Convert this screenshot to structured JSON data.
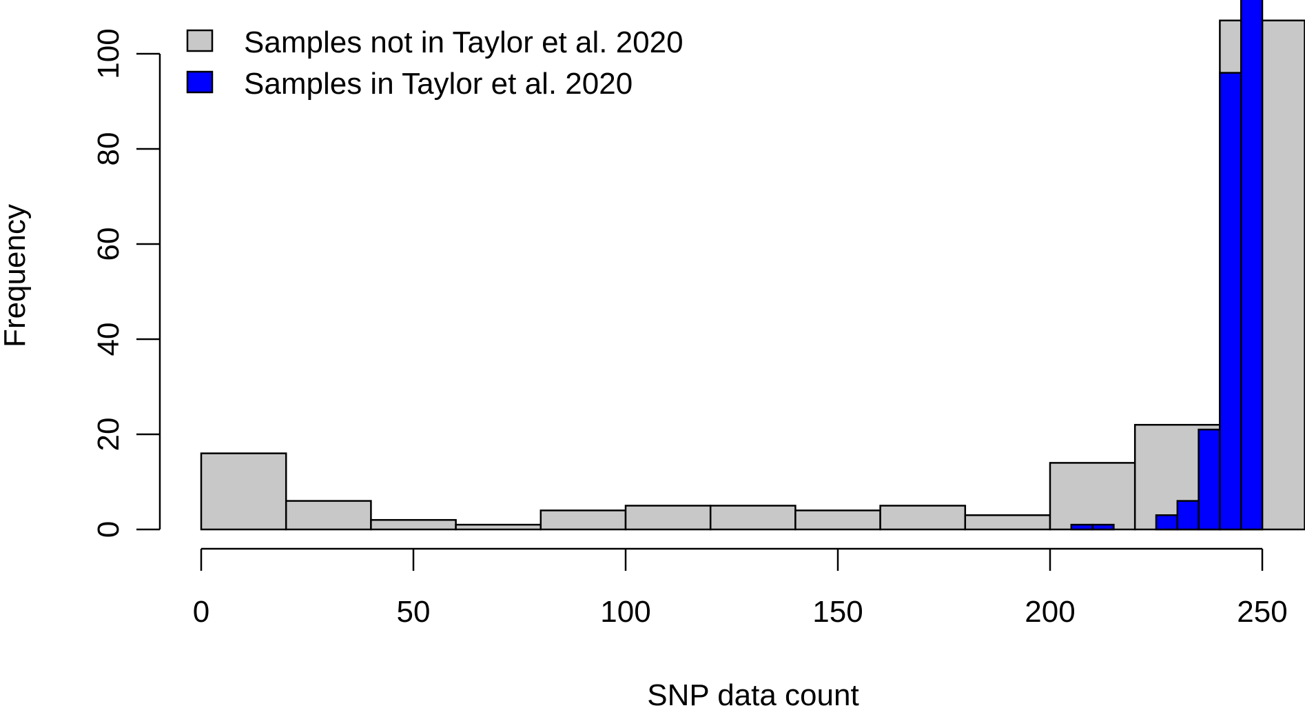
{
  "chart_data": {
    "type": "bar",
    "xlabel": "SNP data count",
    "ylabel": "Frequency",
    "xlim": [
      0,
      260
    ],
    "ylim": [
      0,
      106
    ],
    "x_ticks": [
      0,
      50,
      100,
      150,
      200,
      250
    ],
    "y_ticks": [
      0,
      20,
      40,
      60,
      80,
      100
    ],
    "legend": {
      "placement": "top-left"
    },
    "series": [
      {
        "name": "Samples not in Taylor et al. 2020",
        "color": "#c8c8c8",
        "bins": [
          {
            "x0": 0,
            "x1": 20,
            "count": 16
          },
          {
            "x0": 20,
            "x1": 40,
            "count": 6
          },
          {
            "x0": 40,
            "x1": 60,
            "count": 2
          },
          {
            "x0": 60,
            "x1": 80,
            "count": 1
          },
          {
            "x0": 80,
            "x1": 100,
            "count": 4
          },
          {
            "x0": 100,
            "x1": 120,
            "count": 5
          },
          {
            "x0": 120,
            "x1": 140,
            "count": 5
          },
          {
            "x0": 140,
            "x1": 160,
            "count": 4
          },
          {
            "x0": 160,
            "x1": 180,
            "count": 5
          },
          {
            "x0": 180,
            "x1": 200,
            "count": 3
          },
          {
            "x0": 200,
            "x1": 220,
            "count": 14
          },
          {
            "x0": 220,
            "x1": 240,
            "count": 22
          },
          {
            "x0": 240,
            "x1": 250,
            "count": 107
          },
          {
            "x0": 250,
            "x1": 260,
            "count": 107
          }
        ]
      },
      {
        "name": "Samples in Taylor et al. 2020",
        "color": "#0000ff",
        "bins": [
          {
            "x0": 205,
            "x1": 210,
            "count": 1
          },
          {
            "x0": 210,
            "x1": 215,
            "count": 1
          },
          {
            "x0": 225,
            "x1": 230,
            "count": 3
          },
          {
            "x0": 230,
            "x1": 235,
            "count": 6
          },
          {
            "x0": 235,
            "x1": 240,
            "count": 21
          },
          {
            "x0": 240,
            "x1": 245,
            "count": 96
          },
          {
            "x0": 245,
            "x1": 250,
            "count": 115
          }
        ]
      }
    ]
  }
}
